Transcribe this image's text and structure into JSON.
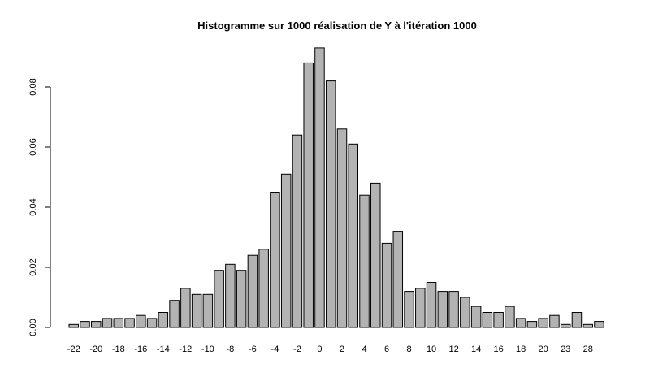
{
  "chart_data": {
    "type": "bar",
    "title": "Histogramme sur 1000 réalisation de Y à l'itération 1000",
    "xlabel": "",
    "ylabel": "",
    "ylim": [
      0,
      0.095
    ],
    "yticks": [
      "0.00",
      "0.02",
      "0.04",
      "0.06",
      "0.08"
    ],
    "grid": false,
    "bar_color": "#b3b3b3",
    "categories": [
      "-22",
      "-21",
      "-20",
      "-19",
      "-18",
      "-17",
      "-16",
      "-15",
      "-14",
      "-13",
      "-12",
      "-11",
      "-10",
      "-9",
      "-8",
      "-7",
      "-6",
      "-5",
      "-4",
      "-3",
      "-2",
      "-1",
      "0",
      "1",
      "2",
      "3",
      "4",
      "5",
      "6",
      "7",
      "8",
      "9",
      "10",
      "11",
      "12",
      "13",
      "14",
      "15",
      "16",
      "17",
      "18",
      "19",
      "20",
      "21",
      "23",
      "25",
      "28",
      "29"
    ],
    "values": [
      0.001,
      0.002,
      0.002,
      0.003,
      0.003,
      0.003,
      0.004,
      0.003,
      0.005,
      0.009,
      0.013,
      0.011,
      0.011,
      0.019,
      0.021,
      0.019,
      0.024,
      0.026,
      0.045,
      0.051,
      0.064,
      0.088,
      0.093,
      0.082,
      0.066,
      0.061,
      0.044,
      0.048,
      0.028,
      0.032,
      0.012,
      0.013,
      0.015,
      0.012,
      0.012,
      0.01,
      0.007,
      0.005,
      0.005,
      0.007,
      0.003,
      0.002,
      0.003,
      0.004,
      0.001,
      0.005,
      0.001,
      0.002
    ],
    "x_tick_labels": [
      "-22",
      "-20",
      "-18",
      "-16",
      "-14",
      "-12",
      "-10",
      "-8",
      "-6",
      "-4",
      "-2",
      "0",
      "2",
      "4",
      "6",
      "8",
      "10",
      "12",
      "14",
      "16",
      "18",
      "20",
      "23",
      "28"
    ]
  }
}
